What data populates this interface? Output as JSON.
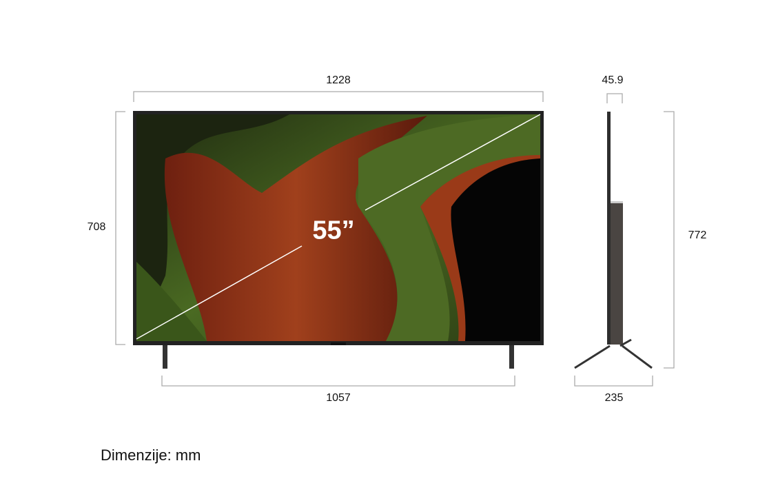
{
  "front": {
    "width_label": "1228",
    "height_label": "708",
    "stand_span_label": "1057",
    "diagonal_label": "55”"
  },
  "side": {
    "depth_label": "45.9",
    "height_with_stand_label": "772",
    "stand_depth_label": "235"
  },
  "units_note": "Dimenzije: mm",
  "colors": {
    "bracket": "#aaaaaa",
    "bezel": "#2a2a2a",
    "screen_green": "#3f5a1e",
    "screen_red": "#8a2a12"
  }
}
